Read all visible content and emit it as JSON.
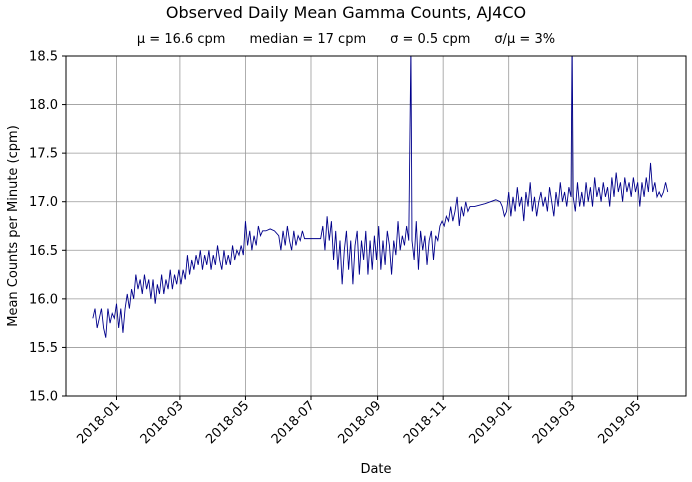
{
  "chart_data": {
    "type": "line",
    "title": "Observed Daily Mean Gamma Counts, AJ4CO",
    "stats": {
      "mean": "μ = 16.6 cpm",
      "median": "median = 17 cpm",
      "sigma": "σ = 0.5 cpm",
      "ratio": "σ/μ = 3%"
    },
    "xlabel": "Date",
    "ylabel": "Mean Counts per Minute (cpm)",
    "xlim": [
      "2017-11-15",
      "2019-06-15"
    ],
    "ylim": [
      15.0,
      18.5
    ],
    "x_ticks": [
      "2018-01",
      "2018-03",
      "2018-05",
      "2018-07",
      "2018-09",
      "2018-11",
      "2019-01",
      "2019-03",
      "2019-05"
    ],
    "y_ticks": [
      "15.0",
      "15.5",
      "16.0",
      "16.5",
      "17.0",
      "17.5",
      "18.0",
      "18.5"
    ],
    "grid": true,
    "line_color": "#00008b",
    "series": [
      {
        "points": [
          [
            "2017-12-10",
            15.8
          ],
          [
            "2017-12-12",
            15.9
          ],
          [
            "2017-12-14",
            15.7
          ],
          [
            "2017-12-16",
            15.8
          ],
          [
            "2017-12-18",
            15.9
          ],
          [
            "2017-12-20",
            15.7
          ],
          [
            "2017-12-22",
            15.6
          ],
          [
            "2017-12-24",
            15.9
          ],
          [
            "2017-12-26",
            15.75
          ],
          [
            "2017-12-28",
            15.85
          ],
          [
            "2017-12-30",
            15.8
          ],
          [
            "2018-01-01",
            15.95
          ],
          [
            "2018-01-03",
            15.7
          ],
          [
            "2018-01-05",
            15.9
          ],
          [
            "2018-01-07",
            15.65
          ],
          [
            "2018-01-09",
            15.9
          ],
          [
            "2018-01-11",
            16.05
          ],
          [
            "2018-01-13",
            15.9
          ],
          [
            "2018-01-15",
            16.1
          ],
          [
            "2018-01-17",
            16.0
          ],
          [
            "2018-01-19",
            16.25
          ],
          [
            "2018-01-21",
            16.1
          ],
          [
            "2018-01-23",
            16.2
          ],
          [
            "2018-01-25",
            16.05
          ],
          [
            "2018-01-27",
            16.25
          ],
          [
            "2018-01-29",
            16.1
          ],
          [
            "2018-01-31",
            16.2
          ],
          [
            "2018-02-02",
            16.0
          ],
          [
            "2018-02-04",
            16.2
          ],
          [
            "2018-02-06",
            15.95
          ],
          [
            "2018-02-08",
            16.15
          ],
          [
            "2018-02-10",
            16.05
          ],
          [
            "2018-02-12",
            16.25
          ],
          [
            "2018-02-14",
            16.05
          ],
          [
            "2018-02-16",
            16.2
          ],
          [
            "2018-02-18",
            16.1
          ],
          [
            "2018-02-20",
            16.3
          ],
          [
            "2018-02-22",
            16.1
          ],
          [
            "2018-02-24",
            16.25
          ],
          [
            "2018-02-26",
            16.15
          ],
          [
            "2018-02-28",
            16.3
          ],
          [
            "2018-03-02",
            16.15
          ],
          [
            "2018-03-04",
            16.3
          ],
          [
            "2018-03-06",
            16.2
          ],
          [
            "2018-03-08",
            16.45
          ],
          [
            "2018-03-10",
            16.25
          ],
          [
            "2018-03-12",
            16.4
          ],
          [
            "2018-03-14",
            16.3
          ],
          [
            "2018-03-16",
            16.45
          ],
          [
            "2018-03-18",
            16.35
          ],
          [
            "2018-03-20",
            16.5
          ],
          [
            "2018-03-22",
            16.3
          ],
          [
            "2018-03-24",
            16.45
          ],
          [
            "2018-03-26",
            16.35
          ],
          [
            "2018-03-28",
            16.5
          ],
          [
            "2018-03-30",
            16.3
          ],
          [
            "2018-04-01",
            16.45
          ],
          [
            "2018-04-03",
            16.35
          ],
          [
            "2018-04-05",
            16.55
          ],
          [
            "2018-04-07",
            16.4
          ],
          [
            "2018-04-09",
            16.3
          ],
          [
            "2018-04-11",
            16.5
          ],
          [
            "2018-04-13",
            16.35
          ],
          [
            "2018-04-15",
            16.45
          ],
          [
            "2018-04-17",
            16.35
          ],
          [
            "2018-04-19",
            16.55
          ],
          [
            "2018-04-21",
            16.4
          ],
          [
            "2018-04-23",
            16.5
          ],
          [
            "2018-04-25",
            16.45
          ],
          [
            "2018-04-27",
            16.55
          ],
          [
            "2018-04-29",
            16.45
          ],
          [
            "2018-05-01",
            16.8
          ],
          [
            "2018-05-03",
            16.55
          ],
          [
            "2018-05-05",
            16.7
          ],
          [
            "2018-05-07",
            16.5
          ],
          [
            "2018-05-09",
            16.65
          ],
          [
            "2018-05-11",
            16.55
          ],
          [
            "2018-05-13",
            16.75
          ],
          [
            "2018-05-15",
            16.65
          ],
          [
            "2018-05-17",
            16.7
          ],
          [
            "2018-05-20",
            16.7
          ],
          [
            "2018-05-24",
            16.72
          ],
          [
            "2018-05-28",
            16.7
          ],
          [
            "2018-06-01",
            16.65
          ],
          [
            "2018-06-03",
            16.5
          ],
          [
            "2018-06-05",
            16.7
          ],
          [
            "2018-06-07",
            16.55
          ],
          [
            "2018-06-09",
            16.75
          ],
          [
            "2018-06-11",
            16.6
          ],
          [
            "2018-06-13",
            16.5
          ],
          [
            "2018-06-15",
            16.7
          ],
          [
            "2018-06-17",
            16.55
          ],
          [
            "2018-06-19",
            16.65
          ],
          [
            "2018-06-21",
            16.6
          ],
          [
            "2018-06-23",
            16.7
          ],
          [
            "2018-06-25",
            16.62
          ],
          [
            "2018-06-30",
            16.62
          ],
          [
            "2018-07-05",
            16.62
          ],
          [
            "2018-07-10",
            16.62
          ],
          [
            "2018-07-12",
            16.75
          ],
          [
            "2018-07-14",
            16.5
          ],
          [
            "2018-07-16",
            16.85
          ],
          [
            "2018-07-18",
            16.6
          ],
          [
            "2018-07-20",
            16.8
          ],
          [
            "2018-07-22",
            16.4
          ],
          [
            "2018-07-24",
            16.7
          ],
          [
            "2018-07-26",
            16.3
          ],
          [
            "2018-07-28",
            16.6
          ],
          [
            "2018-07-30",
            16.15
          ],
          [
            "2018-08-01",
            16.5
          ],
          [
            "2018-08-03",
            16.7
          ],
          [
            "2018-08-05",
            16.3
          ],
          [
            "2018-08-07",
            16.6
          ],
          [
            "2018-08-09",
            16.15
          ],
          [
            "2018-08-11",
            16.55
          ],
          [
            "2018-08-13",
            16.7
          ],
          [
            "2018-08-15",
            16.25
          ],
          [
            "2018-08-17",
            16.6
          ],
          [
            "2018-08-19",
            16.4
          ],
          [
            "2018-08-21",
            16.7
          ],
          [
            "2018-08-23",
            16.25
          ],
          [
            "2018-08-25",
            16.6
          ],
          [
            "2018-08-27",
            16.3
          ],
          [
            "2018-08-29",
            16.65
          ],
          [
            "2018-08-31",
            16.4
          ],
          [
            "2018-09-02",
            16.75
          ],
          [
            "2018-09-04",
            16.3
          ],
          [
            "2018-09-06",
            16.6
          ],
          [
            "2018-09-08",
            16.35
          ],
          [
            "2018-09-10",
            16.7
          ],
          [
            "2018-09-12",
            16.55
          ],
          [
            "2018-09-14",
            16.25
          ],
          [
            "2018-09-16",
            16.6
          ],
          [
            "2018-09-18",
            16.45
          ],
          [
            "2018-09-20",
            16.8
          ],
          [
            "2018-09-22",
            16.5
          ],
          [
            "2018-09-24",
            16.65
          ],
          [
            "2018-09-26",
            16.55
          ],
          [
            "2018-09-28",
            16.75
          ],
          [
            "2018-09-30",
            16.6
          ],
          [
            "2018-10-02",
            18.6
          ],
          [
            "2018-10-03",
            16.6
          ],
          [
            "2018-10-05",
            16.4
          ],
          [
            "2018-10-07",
            16.8
          ],
          [
            "2018-10-09",
            16.3
          ],
          [
            "2018-10-11",
            16.7
          ],
          [
            "2018-10-13",
            16.5
          ],
          [
            "2018-10-15",
            16.65
          ],
          [
            "2018-10-17",
            16.35
          ],
          [
            "2018-10-19",
            16.6
          ],
          [
            "2018-10-21",
            16.7
          ],
          [
            "2018-10-23",
            16.4
          ],
          [
            "2018-10-25",
            16.65
          ],
          [
            "2018-10-27",
            16.6
          ],
          [
            "2018-10-29",
            16.75
          ],
          [
            "2018-10-31",
            16.8
          ],
          [
            "2018-11-02",
            16.75
          ],
          [
            "2018-11-04",
            16.85
          ],
          [
            "2018-11-06",
            16.8
          ],
          [
            "2018-11-08",
            16.95
          ],
          [
            "2018-11-10",
            16.8
          ],
          [
            "2018-11-12",
            16.9
          ],
          [
            "2018-11-14",
            17.05
          ],
          [
            "2018-11-16",
            16.75
          ],
          [
            "2018-11-18",
            16.95
          ],
          [
            "2018-11-20",
            16.85
          ],
          [
            "2018-11-22",
            17.0
          ],
          [
            "2018-11-24",
            16.9
          ],
          [
            "2018-11-26",
            16.95
          ],
          [
            "2018-11-30",
            16.95
          ],
          [
            "2018-12-10",
            16.98
          ],
          [
            "2018-12-20",
            17.02
          ],
          [
            "2018-12-24",
            17.0
          ],
          [
            "2018-12-26",
            16.95
          ],
          [
            "2018-12-28",
            16.85
          ],
          [
            "2018-12-30",
            16.9
          ],
          [
            "2019-01-01",
            17.1
          ],
          [
            "2019-01-03",
            16.85
          ],
          [
            "2019-01-05",
            17.05
          ],
          [
            "2019-01-07",
            16.9
          ],
          [
            "2019-01-09",
            17.15
          ],
          [
            "2019-01-11",
            16.95
          ],
          [
            "2019-01-13",
            17.05
          ],
          [
            "2019-01-15",
            16.8
          ],
          [
            "2019-01-17",
            17.1
          ],
          [
            "2019-01-19",
            16.95
          ],
          [
            "2019-01-21",
            17.2
          ],
          [
            "2019-01-23",
            16.9
          ],
          [
            "2019-01-25",
            17.05
          ],
          [
            "2019-01-27",
            16.85
          ],
          [
            "2019-01-29",
            17.0
          ],
          [
            "2019-01-31",
            17.1
          ],
          [
            "2019-02-02",
            16.95
          ],
          [
            "2019-02-04",
            17.05
          ],
          [
            "2019-02-06",
            16.9
          ],
          [
            "2019-02-08",
            17.15
          ],
          [
            "2019-02-10",
            17.0
          ],
          [
            "2019-02-12",
            16.85
          ],
          [
            "2019-02-14",
            17.1
          ],
          [
            "2019-02-16",
            16.95
          ],
          [
            "2019-02-18",
            17.2
          ],
          [
            "2019-02-20",
            17.0
          ],
          [
            "2019-02-22",
            17.1
          ],
          [
            "2019-02-24",
            16.95
          ],
          [
            "2019-02-26",
            17.15
          ],
          [
            "2019-02-28",
            17.05
          ],
          [
            "2019-03-01",
            18.7
          ],
          [
            "2019-03-02",
            17.05
          ],
          [
            "2019-03-04",
            16.9
          ],
          [
            "2019-03-06",
            17.2
          ],
          [
            "2019-03-08",
            16.95
          ],
          [
            "2019-03-10",
            17.1
          ],
          [
            "2019-03-12",
            16.95
          ],
          [
            "2019-03-14",
            17.2
          ],
          [
            "2019-03-16",
            17.0
          ],
          [
            "2019-03-18",
            17.15
          ],
          [
            "2019-03-20",
            16.95
          ],
          [
            "2019-03-22",
            17.25
          ],
          [
            "2019-03-24",
            17.05
          ],
          [
            "2019-03-26",
            17.15
          ],
          [
            "2019-03-28",
            17.0
          ],
          [
            "2019-03-30",
            17.2
          ],
          [
            "2019-04-01",
            17.05
          ],
          [
            "2019-04-03",
            17.15
          ],
          [
            "2019-04-05",
            16.95
          ],
          [
            "2019-04-07",
            17.25
          ],
          [
            "2019-04-09",
            17.05
          ],
          [
            "2019-04-11",
            17.3
          ],
          [
            "2019-04-13",
            17.1
          ],
          [
            "2019-04-15",
            17.2
          ],
          [
            "2019-04-17",
            17.0
          ],
          [
            "2019-04-19",
            17.25
          ],
          [
            "2019-04-21",
            17.1
          ],
          [
            "2019-04-23",
            17.2
          ],
          [
            "2019-04-25",
            17.05
          ],
          [
            "2019-04-27",
            17.25
          ],
          [
            "2019-04-29",
            17.1
          ],
          [
            "2019-05-01",
            17.2
          ],
          [
            "2019-05-03",
            16.95
          ],
          [
            "2019-05-05",
            17.2
          ],
          [
            "2019-05-07",
            17.05
          ],
          [
            "2019-05-09",
            17.25
          ],
          [
            "2019-05-11",
            17.1
          ],
          [
            "2019-05-13",
            17.4
          ],
          [
            "2019-05-15",
            17.1
          ],
          [
            "2019-05-17",
            17.2
          ],
          [
            "2019-05-19",
            17.05
          ],
          [
            "2019-05-21",
            17.1
          ],
          [
            "2019-05-23",
            17.05
          ],
          [
            "2019-05-25",
            17.1
          ],
          [
            "2019-05-27",
            17.2
          ],
          [
            "2019-05-29",
            17.1
          ]
        ]
      }
    ]
  }
}
